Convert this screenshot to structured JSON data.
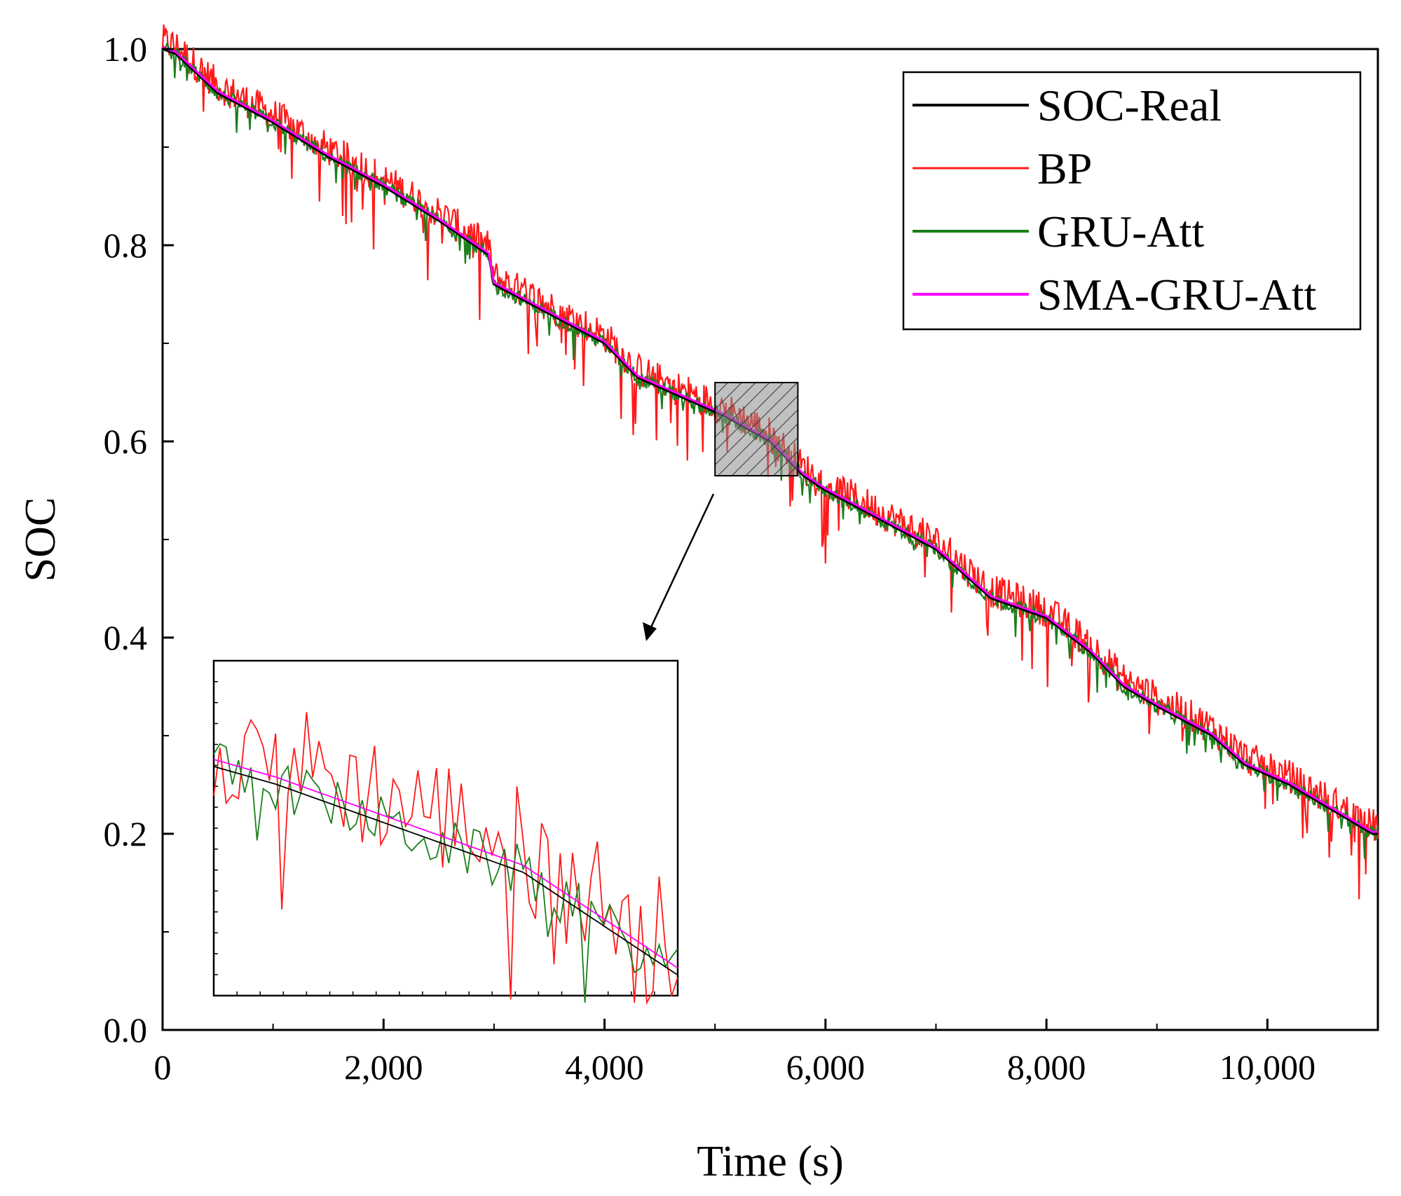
{
  "chart_data": {
    "type": "line",
    "title": "",
    "xlabel": "Time (s)",
    "ylabel": "SOC",
    "xlim": [
      0,
      11000
    ],
    "ylim": [
      0.0,
      1.0
    ],
    "x_ticks": [
      0,
      2000,
      4000,
      6000,
      8000,
      10000
    ],
    "x_tick_labels": [
      "0",
      "2,000",
      "4,000",
      "6,000",
      "8,000",
      "10,000"
    ],
    "y_ticks": [
      0.0,
      0.2,
      0.4,
      0.6,
      0.8,
      1.0
    ],
    "y_tick_labels": [
      "0.0",
      "0.2",
      "0.4",
      "0.6",
      "0.8",
      "1.0"
    ],
    "legend_position": "top-right",
    "real_soc_anchors": {
      "x": [
        0,
        120,
        500,
        1000,
        1500,
        2000,
        2500,
        2950,
        3000,
        3500,
        4000,
        4300,
        4700,
        5100,
        5500,
        5800,
        6000,
        6500,
        7000,
        7500,
        8000,
        8400,
        8700,
        9000,
        9500,
        9800,
        10200,
        10950
      ],
      "y": [
        1.0,
        0.995,
        0.955,
        0.925,
        0.89,
        0.86,
        0.825,
        0.79,
        0.76,
        0.73,
        0.7,
        0.665,
        0.645,
        0.625,
        0.6,
        0.565,
        0.55,
        0.52,
        0.49,
        0.44,
        0.42,
        0.385,
        0.35,
        0.33,
        0.3,
        0.27,
        0.25,
        0.2
      ]
    },
    "series": [
      {
        "name": "SOC-Real",
        "color": "#000000",
        "noise": 0.0,
        "bias": 0.0
      },
      {
        "name": "BP",
        "color": "#ff1a1a",
        "noise": 0.035,
        "bias": 0.008
      },
      {
        "name": "GRU-Att",
        "color": "#1a7f1a",
        "noise": 0.015,
        "bias": 0.0
      },
      {
        "name": "SMA-GRU-Att",
        "color": "#ff00ff",
        "noise": 0.0,
        "bias": 0.0
      }
    ],
    "zoom_region": {
      "x": [
        5000,
        5750
      ],
      "y": [
        0.565,
        0.66
      ]
    }
  }
}
